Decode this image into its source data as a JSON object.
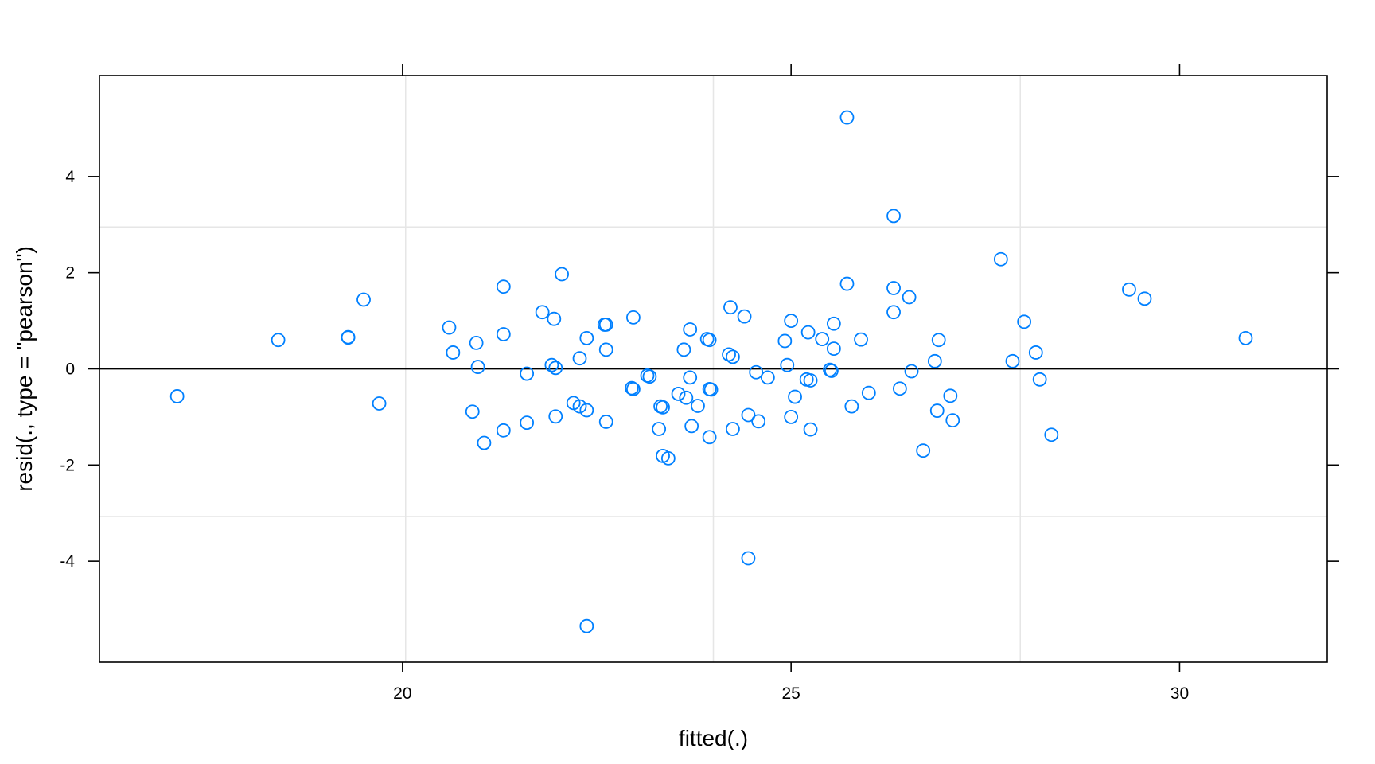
{
  "chart_data": {
    "type": "scatter",
    "xlabel": "fitted(.)",
    "ylabel": "resid(., type = \"pearson\")",
    "xlim": [
      16.1,
      31.9
    ],
    "ylim": [
      -6.1,
      6.1
    ],
    "x_ticks": [
      20,
      25,
      30
    ],
    "y_ticks": [
      -4,
      -2,
      0,
      2,
      4
    ],
    "x_grid": [
      20.04,
      24.0,
      27.95
    ],
    "y_grid": [
      -3.07,
      2.95
    ],
    "reference_line_y": 0,
    "grid": true,
    "point_color": "#0080ff",
    "grid_color": "#e6e6e6",
    "points": [
      {
        "x": 17.1,
        "y": -0.57
      },
      {
        "x": 18.4,
        "y": 0.6
      },
      {
        "x": 19.3,
        "y": 0.66
      },
      {
        "x": 19.3,
        "y": 0.65
      },
      {
        "x": 19.5,
        "y": 1.44
      },
      {
        "x": 19.7,
        "y": -0.72
      },
      {
        "x": 20.6,
        "y": 0.86
      },
      {
        "x": 20.65,
        "y": 0.34
      },
      {
        "x": 20.9,
        "y": -0.89
      },
      {
        "x": 20.95,
        "y": 0.54
      },
      {
        "x": 20.97,
        "y": 0.04
      },
      {
        "x": 21.05,
        "y": -1.54
      },
      {
        "x": 21.3,
        "y": 1.71
      },
      {
        "x": 21.3,
        "y": 0.72
      },
      {
        "x": 21.3,
        "y": -1.28
      },
      {
        "x": 21.6,
        "y": -0.1
      },
      {
        "x": 21.6,
        "y": -1.12
      },
      {
        "x": 21.8,
        "y": 1.18
      },
      {
        "x": 21.92,
        "y": 0.08
      },
      {
        "x": 21.95,
        "y": 1.04
      },
      {
        "x": 21.97,
        "y": 0.02
      },
      {
        "x": 21.97,
        "y": -0.99
      },
      {
        "x": 22.05,
        "y": 1.97
      },
      {
        "x": 22.2,
        "y": -0.71
      },
      {
        "x": 22.28,
        "y": 0.22
      },
      {
        "x": 22.28,
        "y": -0.78
      },
      {
        "x": 22.37,
        "y": 0.64
      },
      {
        "x": 22.37,
        "y": -0.86
      },
      {
        "x": 22.37,
        "y": -5.35
      },
      {
        "x": 22.6,
        "y": 0.92
      },
      {
        "x": 22.62,
        "y": 0.92
      },
      {
        "x": 22.62,
        "y": 0.4
      },
      {
        "x": 22.62,
        "y": -1.1
      },
      {
        "x": 22.95,
        "y": -0.4
      },
      {
        "x": 22.97,
        "y": -0.42
      },
      {
        "x": 22.97,
        "y": 1.07
      },
      {
        "x": 23.15,
        "y": -0.14
      },
      {
        "x": 23.18,
        "y": -0.16
      },
      {
        "x": 23.3,
        "y": -1.25
      },
      {
        "x": 23.32,
        "y": -0.78
      },
      {
        "x": 23.35,
        "y": -0.8
      },
      {
        "x": 23.35,
        "y": -1.81
      },
      {
        "x": 23.42,
        "y": -1.86
      },
      {
        "x": 23.55,
        "y": -0.52
      },
      {
        "x": 23.62,
        "y": 0.4
      },
      {
        "x": 23.65,
        "y": -0.6
      },
      {
        "x": 23.7,
        "y": 0.82
      },
      {
        "x": 23.7,
        "y": -0.18
      },
      {
        "x": 23.72,
        "y": -1.19
      },
      {
        "x": 23.8,
        "y": -0.77
      },
      {
        "x": 23.92,
        "y": 0.62
      },
      {
        "x": 23.95,
        "y": 0.6
      },
      {
        "x": 23.95,
        "y": -0.42
      },
      {
        "x": 23.97,
        "y": -0.43
      },
      {
        "x": 23.95,
        "y": -1.42
      },
      {
        "x": 24.2,
        "y": 0.3
      },
      {
        "x": 24.22,
        "y": 1.28
      },
      {
        "x": 24.25,
        "y": 0.25
      },
      {
        "x": 24.25,
        "y": -1.25
      },
      {
        "x": 24.4,
        "y": 1.09
      },
      {
        "x": 24.45,
        "y": -0.96
      },
      {
        "x": 24.45,
        "y": -3.94
      },
      {
        "x": 24.55,
        "y": -0.07
      },
      {
        "x": 24.58,
        "y": -1.09
      },
      {
        "x": 24.7,
        "y": -0.18
      },
      {
        "x": 24.92,
        "y": 0.58
      },
      {
        "x": 24.95,
        "y": 0.08
      },
      {
        "x": 25.0,
        "y": 1.0
      },
      {
        "x": 25.0,
        "y": -1.0
      },
      {
        "x": 25.05,
        "y": -0.58
      },
      {
        "x": 25.2,
        "y": -0.22
      },
      {
        "x": 25.22,
        "y": 0.76
      },
      {
        "x": 25.25,
        "y": -0.24
      },
      {
        "x": 25.25,
        "y": -1.26
      },
      {
        "x": 25.4,
        "y": 0.62
      },
      {
        "x": 25.5,
        "y": -0.02
      },
      {
        "x": 25.52,
        "y": -0.04
      },
      {
        "x": 25.55,
        "y": 0.94
      },
      {
        "x": 25.55,
        "y": 0.42
      },
      {
        "x": 25.72,
        "y": 1.77
      },
      {
        "x": 25.72,
        "y": 5.23
      },
      {
        "x": 25.78,
        "y": -0.78
      },
      {
        "x": 25.9,
        "y": 0.61
      },
      {
        "x": 26.0,
        "y": -0.5
      },
      {
        "x": 26.32,
        "y": 3.18
      },
      {
        "x": 26.32,
        "y": 1.68
      },
      {
        "x": 26.32,
        "y": 1.18
      },
      {
        "x": 26.4,
        "y": -0.41
      },
      {
        "x": 26.52,
        "y": 1.49
      },
      {
        "x": 26.55,
        "y": -0.05
      },
      {
        "x": 26.7,
        "y": -1.7
      },
      {
        "x": 26.85,
        "y": 0.16
      },
      {
        "x": 26.88,
        "y": -0.87
      },
      {
        "x": 26.9,
        "y": 0.6
      },
      {
        "x": 27.05,
        "y": -0.56
      },
      {
        "x": 27.08,
        "y": -1.07
      },
      {
        "x": 27.7,
        "y": 2.28
      },
      {
        "x": 27.85,
        "y": 0.16
      },
      {
        "x": 28.0,
        "y": 0.98
      },
      {
        "x": 28.15,
        "y": 0.34
      },
      {
        "x": 28.2,
        "y": -0.22
      },
      {
        "x": 28.35,
        "y": -1.37
      },
      {
        "x": 29.35,
        "y": 1.65
      },
      {
        "x": 29.55,
        "y": 1.46
      },
      {
        "x": 30.85,
        "y": 0.64
      }
    ]
  }
}
